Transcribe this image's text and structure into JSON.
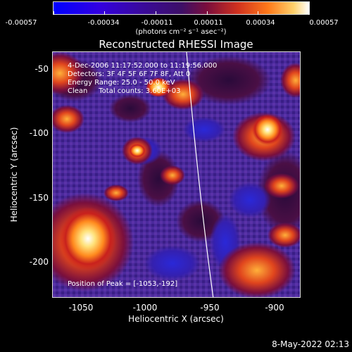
{
  "colorbar": {
    "tick_labels": [
      "-0.00057",
      "-0.00034",
      "-0.00011",
      "0.00011",
      "0.00034",
      "0.00057"
    ],
    "unit_label": "(photons cm⁻² s⁻¹ asec⁻²)"
  },
  "title": "Reconstructed RHESSI Image",
  "image_info": {
    "line1": "4-Dec-2006 11:17:52.000 to 11:19:56.000",
    "line2": "Detectors: 3F 4F 5F 6F 7F 8F, Att 0",
    "line3": "Energy Range: 25.0 - 50.0 keV",
    "line4": "Clean     Total counts: 3.60E+03",
    "peak": "Position of Peak = [-1053,-192]"
  },
  "axes": {
    "x_label": "Heliocentric X (arcsec)",
    "y_label": "Heliocentric Y (arcsec)",
    "x_ticks": [
      "-1050",
      "-1000",
      "-950",
      "-900"
    ],
    "y_ticks": [
      "-50",
      "-100",
      "-150",
      "-200"
    ]
  },
  "date_stamp": "8-May-2022 02:13"
}
